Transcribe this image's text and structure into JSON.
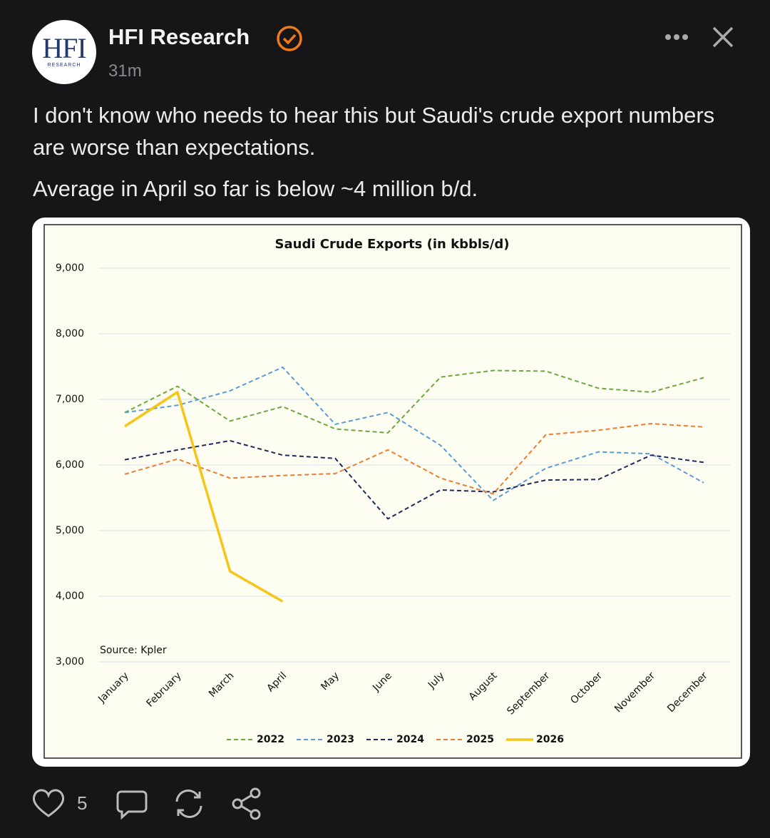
{
  "post": {
    "logo": {
      "main": "HFI",
      "sub": "RESEARCH"
    },
    "author": "HFI Research",
    "time": "31m",
    "paragraphs": [
      "I don't know who needs to hear this but Saudi's crude export numbers are worse than expectations.",
      "Average in April so far is below ~4 million b/d."
    ],
    "likes": "5"
  },
  "chart_data": {
    "type": "line",
    "title": "Saudi Crude Exports (in kbbls/d)",
    "annotation": "Source: Kpler",
    "categories": [
      "January",
      "February",
      "March",
      "April",
      "May",
      "June",
      "July",
      "August",
      "September",
      "October",
      "November",
      "December"
    ],
    "ylim": [
      3000,
      9000
    ],
    "yticks": [
      {
        "value": 3000,
        "label": "3,000"
      },
      {
        "value": 4000,
        "label": "4,000"
      },
      {
        "value": 5000,
        "label": "5,000"
      },
      {
        "value": 6000,
        "label": "6,000"
      },
      {
        "value": 7000,
        "label": "7,000"
      },
      {
        "value": 8000,
        "label": "8,000"
      },
      {
        "value": 9000,
        "label": "9,000"
      }
    ],
    "grid": true,
    "legend": "bottom",
    "series": [
      {
        "name": "2022",
        "color": "#6aaa3e",
        "dashed": true,
        "values": [
          6800,
          7200,
          6670,
          6890,
          6550,
          6490,
          7340,
          7440,
          7430,
          7170,
          7110,
          7330
        ]
      },
      {
        "name": "2023",
        "color": "#5b9bd5",
        "dashed": true,
        "values": [
          6800,
          6910,
          7130,
          7490,
          6620,
          6800,
          6300,
          5460,
          5950,
          6200,
          6170,
          5730
        ]
      },
      {
        "name": "2024",
        "color": "#1f2a5c",
        "dashed": true,
        "values": [
          6080,
          6230,
          6370,
          6150,
          6100,
          5180,
          5620,
          5590,
          5770,
          5780,
          6150,
          6040
        ]
      },
      {
        "name": "2025",
        "color": "#ed7d31",
        "dashed": true,
        "values": [
          5860,
          6090,
          5800,
          5840,
          5870,
          6230,
          5800,
          5560,
          6460,
          6530,
          6630,
          6580
        ]
      },
      {
        "name": "2026",
        "color": "#f5c518",
        "dashed": false,
        "values": [
          6590,
          7110,
          4380,
          3920,
          null,
          null,
          null,
          null,
          null,
          null,
          null,
          null
        ]
      }
    ]
  }
}
